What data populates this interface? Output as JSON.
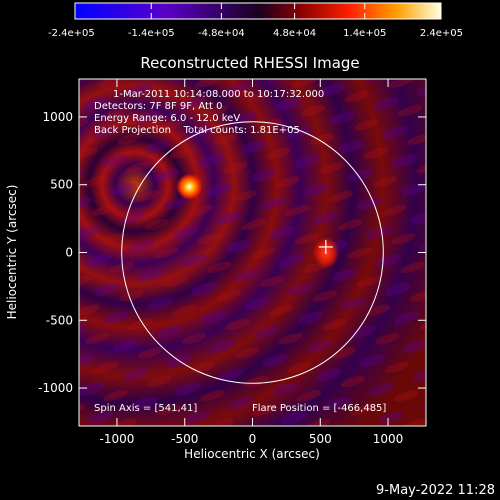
{
  "colorbar": {
    "tick_labels": [
      "-2.4e+05",
      "-1.4e+05",
      "-4.8e+04",
      "4.8e+04",
      "1.4e+05",
      "2.4e+05"
    ],
    "range": [
      -240000,
      240000
    ]
  },
  "plot": {
    "title": "Reconstructed RHESSI Image",
    "xlabel": "Heliocentric X (arcsec)",
    "ylabel": "Heliocentric Y (arcsec)",
    "xlim": [
      -1280,
      1280
    ],
    "ylim": [
      -1280,
      1280
    ],
    "x_ticks": [
      "-1000",
      "-500",
      "0",
      "500",
      "1000"
    ],
    "y_ticks": [
      "1000",
      "500",
      "0",
      "-500",
      "-1000"
    ],
    "limb_radius_arcsec": 965,
    "flare_marker": {
      "x": 541,
      "y": 41
    },
    "bright_source": {
      "x": -466,
      "y": 485
    }
  },
  "info": {
    "line1": "1-Mar-2011 10:14:08.000 to 10:17:32.000",
    "line2": "Detectors: 7F 8F 9F, Att 0",
    "line3": "Energy Range: 6.0 - 12.0 keV",
    "line4": "Back Projection    Total counts: 1.81E+05",
    "spin_axis": "Spin Axis = [541,41]",
    "flare_position": "Flare Position = [-466,485]"
  },
  "footer": {
    "date_stamp": "9-May-2022 11:28"
  }
}
